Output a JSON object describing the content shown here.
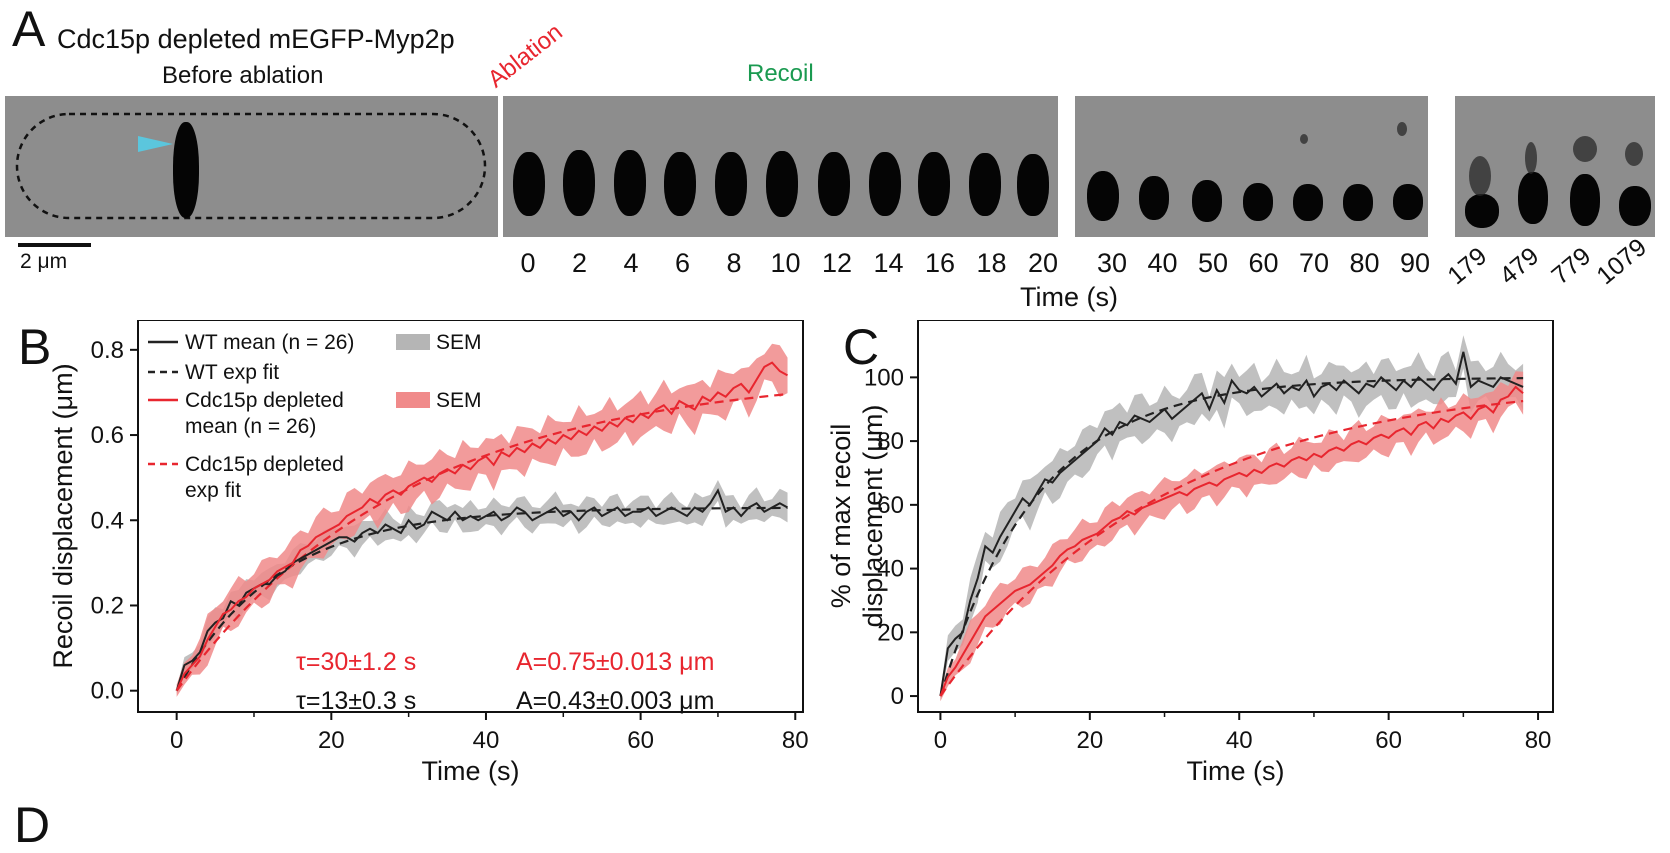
{
  "panelA": {
    "letter": "A",
    "title": "Cdc15p depleted  mEGFP-Myp2p",
    "before_label": "Before ablation",
    "ablation_label": "Ablation",
    "recoil_label": "Recoil",
    "scale_label": "2 μm",
    "time_axis_label": "Time (s)",
    "group1_times": [
      "0",
      "2",
      "4",
      "6",
      "8",
      "10",
      "12",
      "14",
      "16",
      "18",
      "20"
    ],
    "group2_times": [
      "30",
      "40",
      "50",
      "60",
      "70",
      "80",
      "90"
    ],
    "group3_times": [
      "179",
      "479",
      "779",
      "1079"
    ],
    "colors": {
      "ablation": "#e8262f",
      "recoil": "#1a9a50",
      "arrowhead": "#5bc6dd"
    }
  },
  "panelB": {
    "letter": "B"
  },
  "panelC": {
    "letter": "C"
  },
  "panelD": {
    "letter": "D"
  },
  "chart_data": [
    {
      "type": "line",
      "panel": "B",
      "xlabel": "Time (s)",
      "ylabel": "Recoil displacement (μm)",
      "xlim": [
        -5,
        81
      ],
      "ylim": [
        -0.05,
        0.87
      ],
      "xticks": [
        0,
        20,
        40,
        60,
        80
      ],
      "yticks": [
        0.0,
        0.2,
        0.4,
        0.6,
        0.8
      ],
      "ytick_labels": [
        "0.0",
        "0.2",
        "0.4",
        "0.6",
        "0.8"
      ],
      "legend": [
        {
          "label": "WT mean (n = 26)",
          "style": "solid",
          "color": "#222222"
        },
        {
          "label": "WT exp fit",
          "style": "dashed",
          "color": "#222222"
        },
        {
          "label": "Cdc15p depleted",
          "label2": "mean (n = 26)",
          "style": "solid",
          "color": "#e8262f"
        },
        {
          "label": "Cdc15p depleted",
          "label2": "exp fit",
          "style": "dashed",
          "color": "#e8262f"
        }
      ],
      "legend_sem": [
        {
          "label": "SEM",
          "color": "#b5b5b5"
        },
        {
          "label": "SEM",
          "color": "#f08a8a"
        }
      ],
      "annotations": [
        {
          "text": "τ=30±1.2 s",
          "color": "#e8262f"
        },
        {
          "text": "A=0.75±0.013 μm",
          "color": "#e8262f"
        },
        {
          "text": "τ=13±0.3 s",
          "color": "#111111"
        },
        {
          "text": "A=0.43±0.003 μm",
          "color": "#111111"
        }
      ],
      "series": [
        {
          "name": "WT mean (n = 26)",
          "kind": "mean",
          "fit": {
            "A": 0.43,
            "tau": 13
          },
          "color": "#222222",
          "band": "#b5b5b5",
          "x": [
            0,
            1,
            2,
            3,
            4,
            5,
            6,
            7,
            8,
            9,
            10,
            11,
            12,
            13,
            14,
            15,
            16,
            17,
            18,
            19,
            20,
            21,
            22,
            23,
            24,
            25,
            26,
            27,
            28,
            29,
            30,
            31,
            32,
            33,
            34,
            35,
            36,
            37,
            38,
            39,
            40,
            41,
            42,
            43,
            44,
            45,
            46,
            47,
            48,
            49,
            50,
            51,
            52,
            53,
            54,
            55,
            56,
            57,
            58,
            59,
            60,
            61,
            62,
            63,
            64,
            65,
            66,
            67,
            68,
            69,
            70,
            71,
            72,
            73,
            74,
            75,
            76,
            77,
            78,
            79
          ],
          "y": [
            0,
            0.06,
            0.07,
            0.09,
            0.14,
            0.16,
            0.17,
            0.21,
            0.2,
            0.23,
            0.24,
            0.25,
            0.25,
            0.27,
            0.28,
            0.3,
            0.31,
            0.32,
            0.33,
            0.34,
            0.35,
            0.36,
            0.36,
            0.35,
            0.37,
            0.38,
            0.37,
            0.39,
            0.38,
            0.37,
            0.4,
            0.38,
            0.39,
            0.42,
            0.41,
            0.4,
            0.42,
            0.4,
            0.41,
            0.4,
            0.41,
            0.42,
            0.4,
            0.41,
            0.43,
            0.42,
            0.4,
            0.41,
            0.42,
            0.43,
            0.41,
            0.42,
            0.4,
            0.42,
            0.43,
            0.41,
            0.42,
            0.43,
            0.41,
            0.42,
            0.42,
            0.43,
            0.41,
            0.42,
            0.43,
            0.42,
            0.41,
            0.43,
            0.42,
            0.44,
            0.47,
            0.42,
            0.43,
            0.41,
            0.43,
            0.44,
            0.42,
            0.43,
            0.44,
            0.43
          ],
          "sem": 0.028
        },
        {
          "name": "Cdc15p depleted mean (n = 26)",
          "kind": "mean",
          "fit": {
            "A": 0.75,
            "tau": 30
          },
          "color": "#e8262f",
          "band": "#f08a8a",
          "x": [
            0,
            1,
            2,
            3,
            4,
            5,
            6,
            7,
            8,
            9,
            10,
            11,
            12,
            13,
            14,
            15,
            16,
            17,
            18,
            19,
            20,
            21,
            22,
            23,
            24,
            25,
            26,
            27,
            28,
            29,
            30,
            31,
            32,
            33,
            34,
            35,
            36,
            37,
            38,
            39,
            40,
            41,
            42,
            43,
            44,
            45,
            46,
            47,
            48,
            49,
            50,
            51,
            52,
            53,
            54,
            55,
            56,
            57,
            58,
            59,
            60,
            61,
            62,
            63,
            64,
            65,
            66,
            67,
            68,
            69,
            70,
            71,
            72,
            73,
            74,
            75,
            76,
            77,
            78,
            79
          ],
          "y": [
            0,
            0.04,
            0.06,
            0.08,
            0.12,
            0.15,
            0.18,
            0.19,
            0.21,
            0.22,
            0.24,
            0.25,
            0.26,
            0.28,
            0.29,
            0.3,
            0.33,
            0.34,
            0.36,
            0.37,
            0.38,
            0.39,
            0.41,
            0.42,
            0.43,
            0.45,
            0.44,
            0.46,
            0.47,
            0.46,
            0.48,
            0.49,
            0.5,
            0.49,
            0.51,
            0.52,
            0.51,
            0.53,
            0.52,
            0.54,
            0.55,
            0.53,
            0.56,
            0.55,
            0.57,
            0.56,
            0.58,
            0.57,
            0.59,
            0.58,
            0.6,
            0.59,
            0.61,
            0.6,
            0.62,
            0.61,
            0.63,
            0.62,
            0.64,
            0.63,
            0.65,
            0.64,
            0.66,
            0.67,
            0.65,
            0.68,
            0.67,
            0.66,
            0.69,
            0.68,
            0.7,
            0.69,
            0.71,
            0.72,
            0.7,
            0.73,
            0.76,
            0.77,
            0.75,
            0.74
          ],
          "sem": 0.045
        }
      ]
    },
    {
      "type": "line",
      "panel": "C",
      "xlabel": "Time (s)",
      "ylabel": "% of max recoil",
      "ylabel2": "displacement (μm)",
      "xlim": [
        -3,
        82
      ],
      "ylim": [
        -5,
        118
      ],
      "xticks": [
        0,
        20,
        40,
        60,
        80
      ],
      "yticks": [
        0,
        20,
        40,
        60,
        80,
        100
      ],
      "series": [
        {
          "name": "WT",
          "fit": {
            "A": 100,
            "tau": 13
          },
          "color": "#222222",
          "band": "#b5b5b5",
          "x": [
            0,
            1,
            2,
            3,
            4,
            5,
            6,
            7,
            8,
            9,
            10,
            11,
            12,
            13,
            14,
            15,
            16,
            17,
            18,
            19,
            20,
            21,
            22,
            23,
            24,
            25,
            26,
            27,
            28,
            29,
            30,
            31,
            32,
            33,
            34,
            35,
            36,
            37,
            38,
            39,
            40,
            41,
            42,
            43,
            44,
            45,
            46,
            47,
            48,
            49,
            50,
            51,
            52,
            53,
            54,
            55,
            56,
            57,
            58,
            59,
            60,
            61,
            62,
            63,
            64,
            65,
            66,
            67,
            68,
            69,
            70,
            71,
            72,
            73,
            74,
            75,
            76,
            77,
            78
          ],
          "y": [
            0,
            15,
            18,
            20,
            30,
            37,
            47,
            45,
            50,
            54,
            58,
            62,
            60,
            64,
            68,
            67,
            70,
            72,
            74,
            76,
            78,
            80,
            84,
            82,
            86,
            85,
            88,
            87,
            86,
            88,
            90,
            87,
            89,
            91,
            93,
            95,
            90,
            96,
            92,
            99,
            96,
            95,
            97,
            94,
            96,
            98,
            95,
            97,
            96,
            99,
            94,
            97,
            98,
            96,
            99,
            97,
            95,
            98,
            97,
            100,
            98,
            96,
            99,
            97,
            100,
            98,
            96,
            99,
            101,
            98,
            108,
            97,
            99,
            98,
            97,
            100,
            99,
            98,
            97
          ],
          "sem": 6
        },
        {
          "name": "Cdc15p depleted",
          "fit": {
            "A": 100,
            "tau": 30
          },
          "color": "#e8262f",
          "band": "#f08a8a",
          "x": [
            0,
            1,
            2,
            3,
            4,
            5,
            6,
            7,
            8,
            9,
            10,
            11,
            12,
            13,
            14,
            15,
            16,
            17,
            18,
            19,
            20,
            21,
            22,
            23,
            24,
            25,
            26,
            27,
            28,
            29,
            30,
            31,
            32,
            33,
            34,
            35,
            36,
            37,
            38,
            39,
            40,
            41,
            42,
            43,
            44,
            45,
            46,
            47,
            48,
            49,
            50,
            51,
            52,
            53,
            54,
            55,
            56,
            57,
            58,
            59,
            60,
            61,
            62,
            63,
            64,
            65,
            66,
            67,
            68,
            69,
            70,
            71,
            72,
            73,
            74,
            75,
            76,
            77,
            78
          ],
          "y": [
            0,
            6,
            9,
            13,
            17,
            21,
            25,
            27,
            29,
            31,
            33,
            34,
            35,
            37,
            39,
            41,
            44,
            46,
            47,
            49,
            50,
            51,
            53,
            55,
            56,
            58,
            57,
            59,
            60,
            61,
            62,
            63,
            64,
            63,
            65,
            66,
            67,
            66,
            68,
            69,
            70,
            69,
            71,
            70,
            72,
            73,
            72,
            74,
            75,
            74,
            76,
            75,
            77,
            78,
            77,
            79,
            80,
            79,
            81,
            82,
            81,
            83,
            84,
            82,
            85,
            86,
            84,
            87,
            86,
            88,
            89,
            87,
            90,
            91,
            89,
            93,
            94,
            97,
            95
          ],
          "sem": 5
        }
      ]
    }
  ]
}
